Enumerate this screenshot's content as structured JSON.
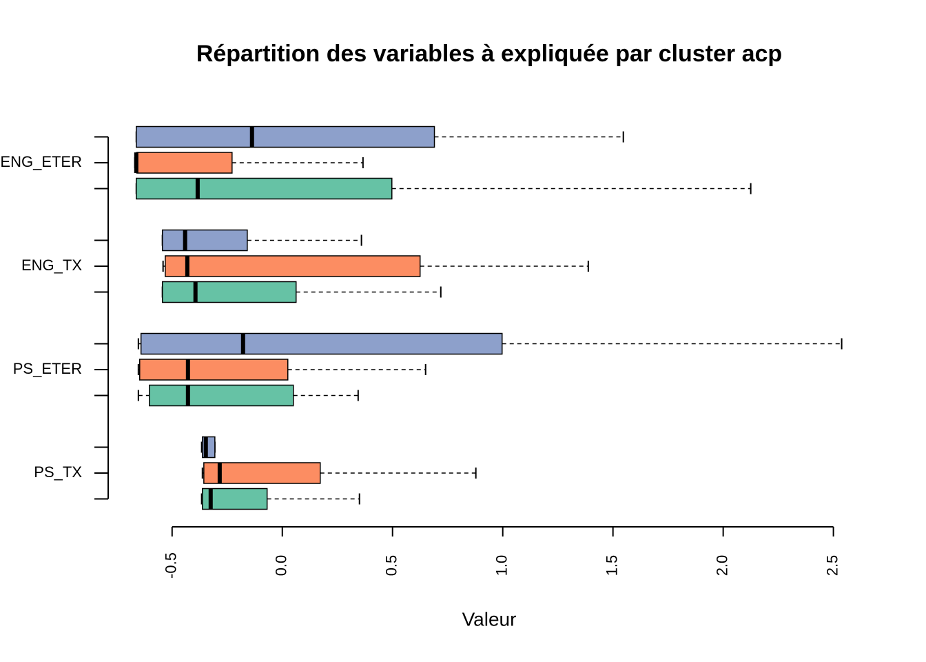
{
  "chart_data": {
    "type": "boxplot",
    "title": "Répartition des variables à expliquée par cluster acp",
    "x_label": "Valeur",
    "orientation": "horizontal",
    "categories": [
      "PS_TX",
      "PS_ETER",
      "ENG_TX",
      "ENG_ETER"
    ],
    "series": [
      {
        "color": "#66c2a5",
        "min": [
          -0.366,
          -0.653,
          -0.544,
          -0.6625
        ],
        "q1": [
          -0.3625,
          -0.603,
          -0.544,
          -0.6625
        ],
        "median": [
          -0.325,
          -0.428,
          -0.394,
          -0.384
        ],
        "q3": [
          -0.069,
          0.05,
          0.0625,
          0.497
        ],
        "max": [
          0.35,
          0.344,
          0.719,
          2.125
        ]
      },
      {
        "color": "#fc8d62",
        "min": [
          -0.3625,
          -0.653,
          -0.541,
          -0.669
        ],
        "q1": [
          -0.356,
          -0.647,
          -0.531,
          -0.66
        ],
        "median": [
          -0.284,
          -0.428,
          -0.431,
          -0.6625
        ],
        "q3": [
          0.172,
          0.025,
          0.625,
          -0.228
        ],
        "max": [
          0.878,
          0.65,
          1.388,
          0.366
        ]
      },
      {
        "color": "#8da0cb",
        "min": [
          -0.366,
          -0.653,
          -0.544,
          -0.6625
        ],
        "q1": [
          -0.3625,
          -0.641,
          -0.544,
          -0.6625
        ],
        "median": [
          -0.347,
          -0.178,
          -0.441,
          -0.1375
        ],
        "q3": [
          -0.306,
          0.997,
          -0.159,
          0.69
        ],
        "max": [
          -0.306,
          2.5375,
          0.359,
          1.547
        ]
      }
    ],
    "xlim": [
      -0.79,
      2.67
    ],
    "xticks": [
      -0.5,
      {
        "value": 0,
        "label": "0.0"
      },
      0.5,
      {
        "value": 1,
        "label": "1.0"
      },
      1.5,
      {
        "value": 2,
        "label": "2.0"
      },
      2.5
    ]
  }
}
